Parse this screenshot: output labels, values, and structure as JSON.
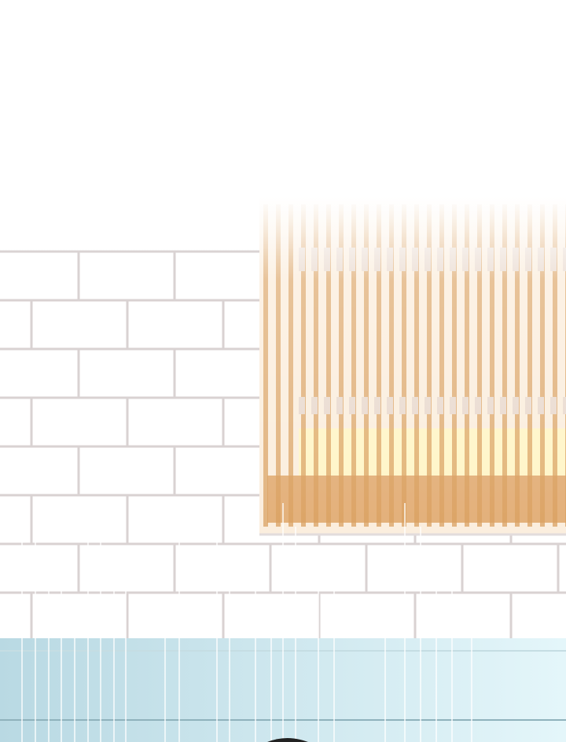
{
  "scene": {
    "subject": "brick-wall-with-window-in-rain",
    "colors": {
      "sky": "#ffffff",
      "mortar": "#d9d2d2",
      "window_bars": "#d9a060",
      "window_glow": "#fff5c8",
      "pavement": "#cfe9ef",
      "pavement_line": "#8fb2bc",
      "dark_shape": "#222222"
    }
  }
}
